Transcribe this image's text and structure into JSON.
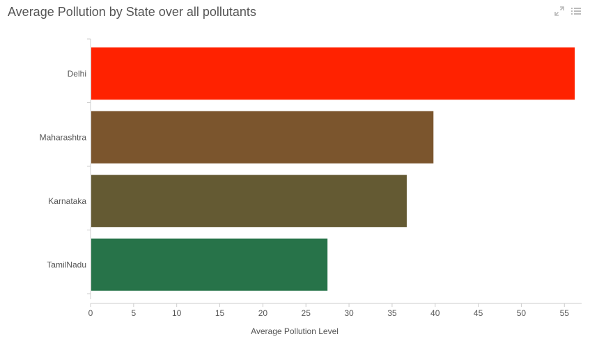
{
  "title": "Average Pollution by State over all pollutants",
  "toolbar": {
    "expand_icon": "expand-icon",
    "menu_icon": "list-menu-icon"
  },
  "chart_data": {
    "type": "bar",
    "orientation": "horizontal",
    "categories": [
      "Delhi",
      "Maharashtra",
      "Karnataka",
      "TamilNadu"
    ],
    "values": [
      56.2,
      39.8,
      36.7,
      27.5
    ],
    "colors": [
      "#ff2200",
      "#7b552d",
      "#645a33",
      "#277349"
    ],
    "title": "Average Pollution by State over all pollutants",
    "xlabel": "Average Pollution Level",
    "ylabel": "",
    "xlim": [
      0,
      57
    ],
    "xticks": [
      0,
      5,
      10,
      15,
      20,
      25,
      30,
      35,
      40,
      45,
      50,
      55
    ],
    "grid": false,
    "legend": "none"
  }
}
